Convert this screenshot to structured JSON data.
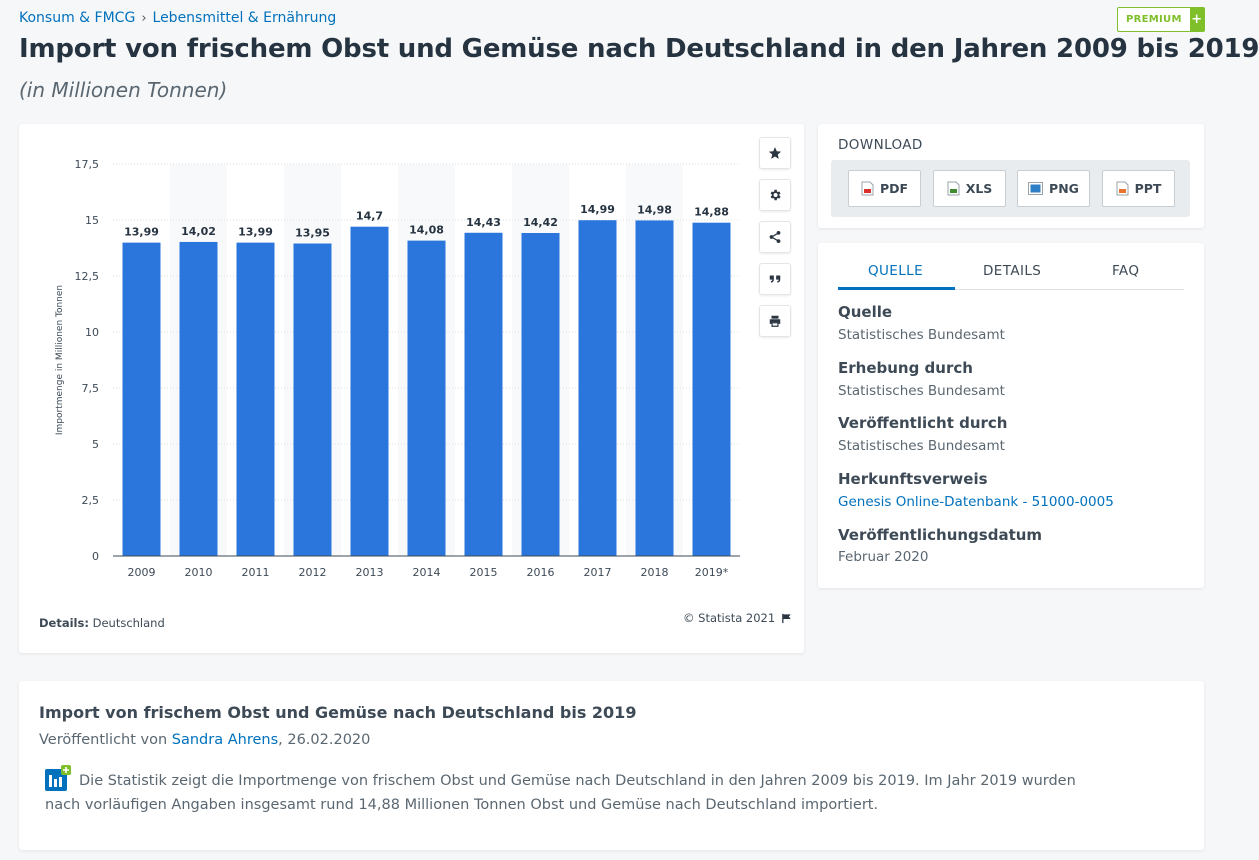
{
  "breadcrumb": {
    "items": [
      "Konsum & FMCG",
      "Lebensmittel & Ernährung"
    ],
    "separator": "›"
  },
  "premium": {
    "label": "PREMIUM",
    "plus": "+"
  },
  "page": {
    "title": "Import von frischem Obst und Gemüse nach Deutschland in den Jahren 2009 bis 2019",
    "subtitle": "(in Millionen Tonnen)"
  },
  "chart_data": {
    "type": "bar",
    "categories": [
      "2009",
      "2010",
      "2011",
      "2012",
      "2013",
      "2014",
      "2015",
      "2016",
      "2017",
      "2018",
      "2019*"
    ],
    "values": [
      13.99,
      14.02,
      13.99,
      13.95,
      14.7,
      14.08,
      14.43,
      14.42,
      14.99,
      14.98,
      14.88
    ],
    "value_labels": [
      "13,99",
      "14,02",
      "13,99",
      "13,95",
      "14,7",
      "14,08",
      "14,43",
      "14,42",
      "14,99",
      "14,98",
      "14,88"
    ],
    "ylabel": "Importmenge in Millionen Tonnen",
    "ylim": [
      0,
      17.5
    ],
    "yticks": [
      0,
      2.5,
      5,
      7.5,
      10,
      12.5,
      15,
      17.5
    ],
    "ytick_labels": [
      "0",
      "2,5",
      "5",
      "7,5",
      "10",
      "12,5",
      "15",
      "17,5"
    ],
    "grid": true,
    "bar_color": "#2a76dd"
  },
  "chart_footer": {
    "details_label": "Details:",
    "details_value": "Deutschland",
    "copyright": "© Statista 2021"
  },
  "download": {
    "title": "DOWNLOAD",
    "buttons": [
      {
        "label": "PDF",
        "color": "#d9302c"
      },
      {
        "label": "XLS",
        "color": "#3f8d2f"
      },
      {
        "label": "PNG",
        "color": "#2f7fc6"
      },
      {
        "label": "PPT",
        "color": "#e8732c"
      }
    ]
  },
  "source_tabs": {
    "items": [
      "QUELLE",
      "DETAILS",
      "FAQ"
    ],
    "active": "QUELLE"
  },
  "source": {
    "quelle_label": "Quelle",
    "quelle_value": "Statistisches Bundesamt",
    "erhebung_label": "Erhebung durch",
    "erhebung_value": "Statistisches Bundesamt",
    "veroeffentlicht_label": "Veröffentlicht durch",
    "veroeffentlicht_value": "Statistisches Bundesamt",
    "herkunft_label": "Herkunftsverweis",
    "herkunft_value": "Genesis Online-Datenbank - 51000-0005",
    "datum_label": "Veröffentlichungsdatum",
    "datum_value": "Februar 2020"
  },
  "description": {
    "title": "Import von frischem Obst und Gemüse nach Deutschland bis 2019",
    "published_prefix": "Veröffentlicht von",
    "author": "Sandra Ahrens",
    "published_suffix": ", 26.02.2020",
    "body": "Die Statistik zeigt die Importmenge von frischem Obst und Gemüse nach Deutschland in den Jahren 2009 bis 2019. Im Jahr 2019 wurden nach vorläufigen Angaben insgesamt rund 14,88 Millionen Tonnen Obst und Gemüse nach Deutschland importiert."
  },
  "toolbar_icons": [
    "star-icon",
    "gear-icon",
    "share-icon",
    "quote-icon",
    "print-icon"
  ]
}
